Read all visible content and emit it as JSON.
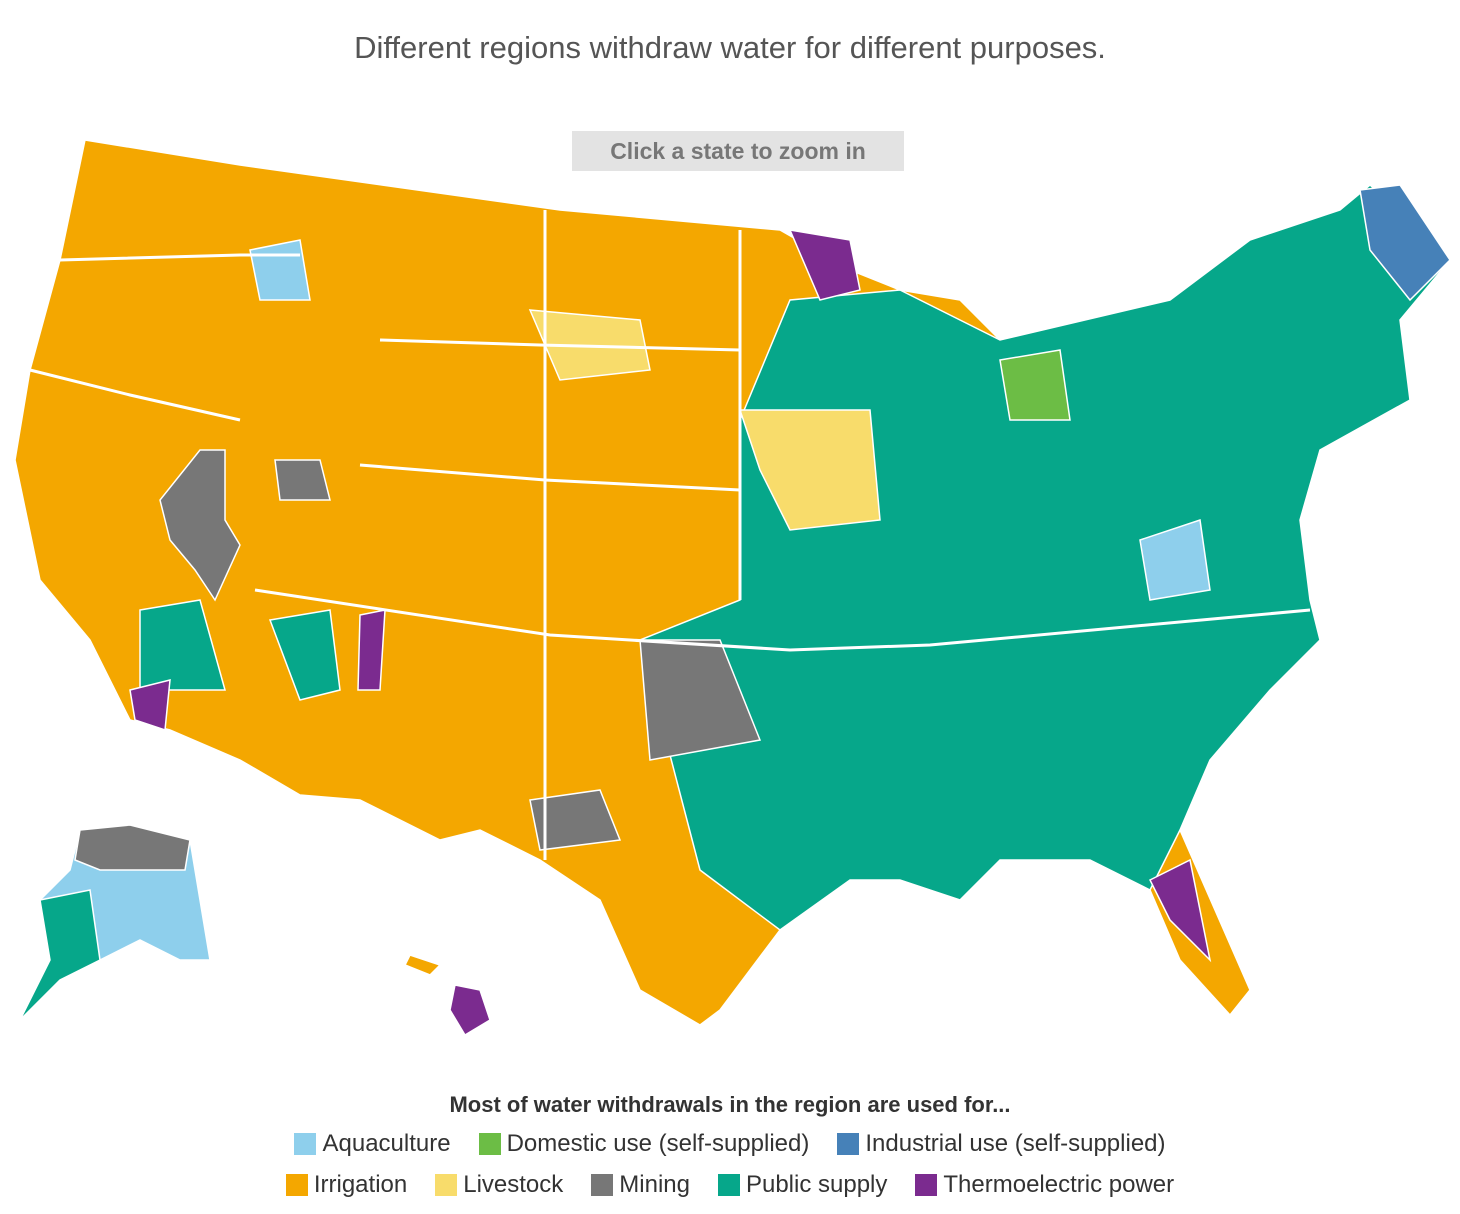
{
  "title": "Different regions withdraw water for different purposes.",
  "button": "Click a state to zoom in",
  "legend": {
    "title": "Most of water withdrawals in the region are used for...",
    "items": [
      {
        "name": "Aquaculture",
        "color": "#8ecfec"
      },
      {
        "name": "Domestic use (self-supplied)",
        "color": "#6cbd45"
      },
      {
        "name": "Industrial use (self-supplied)",
        "color": "#4681b8"
      },
      {
        "name": "Irrigation",
        "color": "#f4a700"
      },
      {
        "name": "Livestock",
        "color": "#f8dc6b"
      },
      {
        "name": "Mining",
        "color": "#777777"
      },
      {
        "name": "Public supply",
        "color": "#06a78a"
      },
      {
        "name": "Thermoelectric power",
        "color": "#7b2b8f"
      }
    ]
  }
}
